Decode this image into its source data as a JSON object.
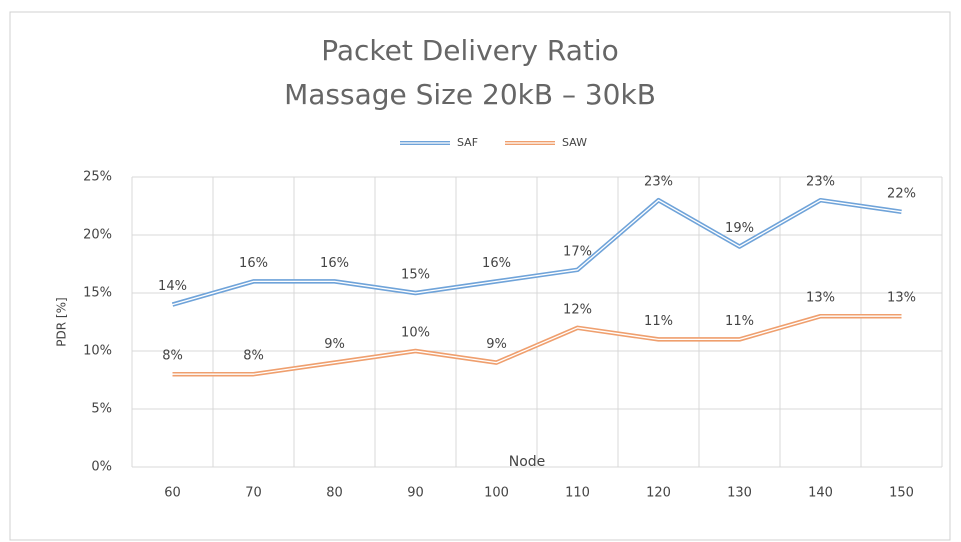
{
  "chart_data": {
    "type": "line",
    "title": "Packet Delivery Ratio",
    "subtitle": "Massage Size 20kB – 30kB",
    "x_label": "Node",
    "y_label": "PDR [%]",
    "categories": [
      "60",
      "70",
      "80",
      "90",
      "100",
      "110",
      "120",
      "130",
      "140",
      "150"
    ],
    "series": [
      {
        "name": "SAF",
        "color": "#6fa3d9",
        "values": [
          14,
          16,
          16,
          15,
          16,
          17,
          23,
          19,
          23,
          22
        ],
        "value_labels": [
          "14%",
          "16%",
          "16%",
          "15%",
          "16%",
          "17%",
          "23%",
          "19%",
          "23%",
          "22%"
        ]
      },
      {
        "name": "SAW",
        "color": "#ef9f6e",
        "values": [
          8,
          8,
          9,
          10,
          9,
          12,
          11,
          11,
          13,
          13
        ],
        "value_labels": [
          "8%",
          "8%",
          "9%",
          "10%",
          "9%",
          "12%",
          "11%",
          "11%",
          "13%",
          "13%"
        ]
      }
    ],
    "ylim": [
      0,
      25
    ],
    "yticks": [
      {
        "value": 0,
        "label": "0%"
      },
      {
        "value": 5,
        "label": "5%"
      },
      {
        "value": 10,
        "label": "10%"
      },
      {
        "value": 15,
        "label": "15%"
      },
      {
        "value": 20,
        "label": "20%"
      },
      {
        "value": 25,
        "label": "25%"
      }
    ],
    "grid": true,
    "legend": "top"
  }
}
